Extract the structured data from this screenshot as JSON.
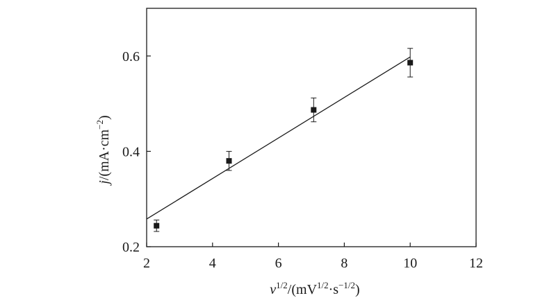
{
  "chart_data": {
    "type": "scatter",
    "xlabel": "v1/2/(mV1/2·s−1/2)",
    "ylabel": "j/(mA·cm−2)",
    "xlim": [
      2,
      12
    ],
    "ylim": [
      0.2,
      0.7
    ],
    "x_ticks": [
      2,
      4,
      6,
      8,
      10,
      12
    ],
    "y_ticks": [
      0.2,
      0.4,
      0.6
    ],
    "x_tick_labels": [
      "2",
      "4",
      "6",
      "8",
      "10",
      "12"
    ],
    "y_tick_labels": [
      "0.2",
      "0.4",
      "0.6"
    ],
    "grid": false,
    "series": [
      {
        "marker": "square",
        "points": [
          {
            "x": 2.3,
            "y": 0.244,
            "err": 0.012
          },
          {
            "x": 4.5,
            "y": 0.38,
            "err": 0.02
          },
          {
            "x": 7.07,
            "y": 0.487,
            "err": 0.025
          },
          {
            "x": 10.0,
            "y": 0.586,
            "err": 0.03
          }
        ]
      }
    ],
    "fit_line": {
      "x": [
        2.0,
        10.0
      ],
      "y": [
        0.258,
        0.598
      ]
    },
    "colors": {
      "ink": "#1a1a1a"
    }
  }
}
